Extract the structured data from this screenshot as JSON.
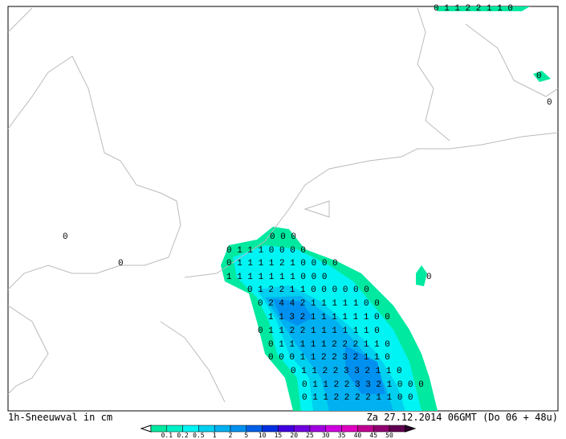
{
  "map": {
    "caption": "1h-Sneeuwval in cm",
    "timestamp": "Za 27.12.2014 06GMT (Do 06 + 48u)",
    "legend": {
      "labels": [
        0.1,
        0.2,
        0.5,
        1,
        2,
        5,
        10,
        15,
        20,
        25,
        30,
        35,
        40,
        45,
        50
      ],
      "colors": [
        "#00e9a0",
        "#00f0c8",
        "#00f4f4",
        "#00d0f0",
        "#00b0f0",
        "#0090f0",
        "#0060e8",
        "#0030e0",
        "#4000e0",
        "#7000e0",
        "#a000e0",
        "#d000e0",
        "#e000c0",
        "#c00090",
        "#900070",
        "#600050"
      ]
    },
    "grid": {
      "rows": [
        "0 1 1 2 2 1 1 0",
        "0",
        "0",
        "0",
        "0",
        "0",
        "0 0 0",
        "0 1 1 1 0 0 0 0",
        "0 1 1 1 1 2 1 0 0 0 0",
        "1 1 1 1 1 1 1 0 0 0",
        "0 1 2 2 1 1 0 0 0 0 0 0",
        "0 2 4 4 2 1 1 1 1 1 0 0",
        "1 1 3 2 1 1 1 1 1 1 0 0",
        "0 1 1 2 2 1 1 1 1 1 1 0",
        "0 1 1 1 1 1 2 2 2 1 1 0",
        "0 0 0 1 1 2 2 3 2 1 1 0",
        "0 1 1 2 2 3 3 2 1 1 0",
        "0 1 1 2 2 3 3 2 1 0 0 0",
        "0 1 1 2 2 2 2 1 1 0 0"
      ]
    }
  }
}
